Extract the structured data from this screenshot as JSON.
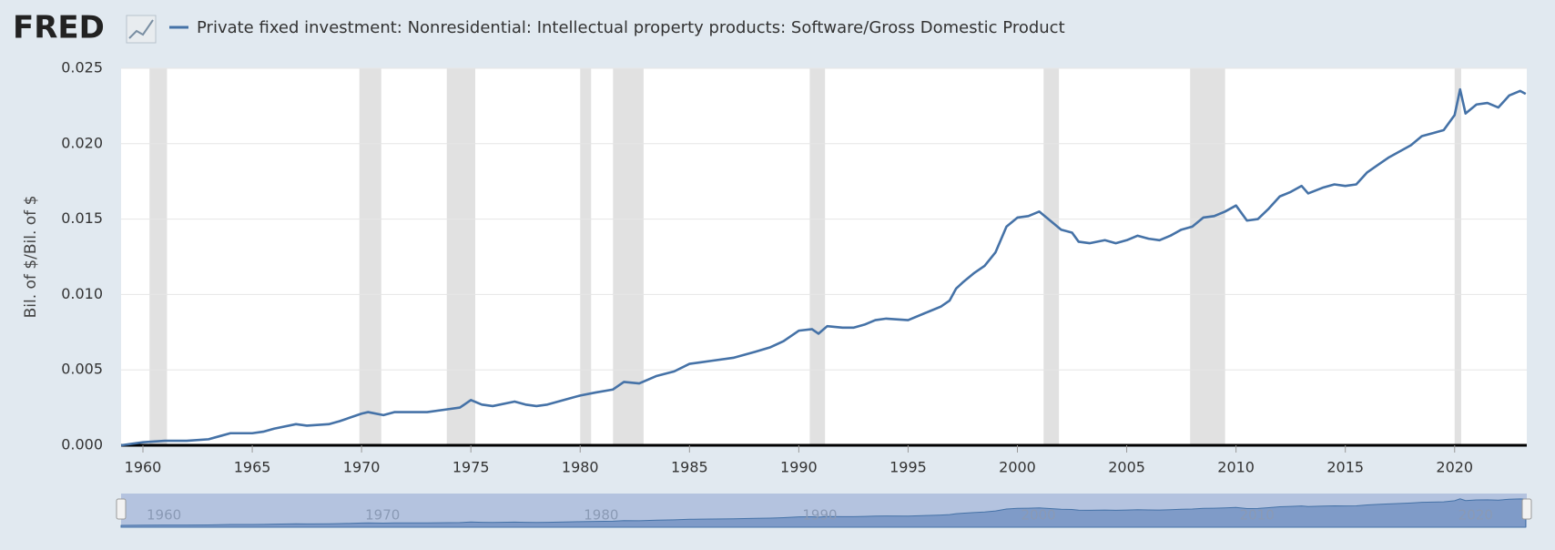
{
  "logo": "FRED",
  "chart_data": {
    "type": "line",
    "y_label": "Bil. of $/Bil. of $",
    "x": [
      1959,
      1960,
      1961,
      1962,
      1963,
      1963.5,
      1964,
      1965,
      1965.5,
      1966,
      1967,
      1967.5,
      1968.5,
      1969,
      1970,
      1970.3,
      1971,
      1971.5,
      1973,
      1974,
      1974.5,
      1975,
      1975.5,
      1976,
      1977,
      1977.5,
      1978,
      1978.5,
      1979.5,
      1980,
      1980.7,
      1981.5,
      1982,
      1982.7,
      1983.5,
      1984.3,
      1985,
      1985.5,
      1986,
      1987,
      1988,
      1988.7,
      1989.3,
      1990,
      1990.6,
      1990.9,
      1991.3,
      1992,
      1992.5,
      1993,
      1993.5,
      1994,
      1995,
      1996,
      1996.5,
      1996.9,
      1997.2,
      1997.5,
      1998,
      1998.5,
      1999,
      1999.5,
      2000,
      2000.5,
      2001,
      2001.5,
      2002,
      2002.5,
      2002.8,
      2003.3,
      2004,
      2004.5,
      2005,
      2005.5,
      2006,
      2006.5,
      2007,
      2007.5,
      2008,
      2008.5,
      2009,
      2009.5,
      2010,
      2010.5,
      2011,
      2011.5,
      2012,
      2012.5,
      2013,
      2013.3,
      2014,
      2014.5,
      2015,
      2015.5,
      2016,
      2016.5,
      2017,
      2018,
      2018.5,
      2019,
      2019.5,
      2020,
      2020.25,
      2020.5,
      2021,
      2021.5,
      2022,
      2022.5,
      2023,
      2023.25
    ],
    "series": [
      {
        "name": "Private fixed investment: Nonresidential: Intellectual property products: Software/Gross Domestic Product",
        "color": "#4572a7",
        "values": [
          0.0,
          0.0002,
          0.0003,
          0.0003,
          0.0004,
          0.0006,
          0.0008,
          0.0008,
          0.0009,
          0.0011,
          0.0014,
          0.0013,
          0.0014,
          0.0016,
          0.0021,
          0.0022,
          0.002,
          0.0022,
          0.0022,
          0.0024,
          0.0025,
          0.003,
          0.0027,
          0.0026,
          0.0029,
          0.0027,
          0.0026,
          0.0027,
          0.0031,
          0.0033,
          0.0035,
          0.0037,
          0.0042,
          0.0041,
          0.0046,
          0.0049,
          0.0054,
          0.0055,
          0.0056,
          0.0058,
          0.0062,
          0.0065,
          0.0069,
          0.0076,
          0.0077,
          0.0074,
          0.0079,
          0.0078,
          0.0078,
          0.008,
          0.0083,
          0.0084,
          0.0083,
          0.0089,
          0.0092,
          0.0096,
          0.0104,
          0.0108,
          0.0114,
          0.0119,
          0.0128,
          0.0145,
          0.0151,
          0.0152,
          0.0155,
          0.0149,
          0.0143,
          0.0141,
          0.0135,
          0.0134,
          0.0136,
          0.0134,
          0.0136,
          0.0139,
          0.0137,
          0.0136,
          0.0139,
          0.0143,
          0.0145,
          0.0151,
          0.0152,
          0.0155,
          0.0159,
          0.0149,
          0.015,
          0.0157,
          0.0165,
          0.0168,
          0.0172,
          0.0167,
          0.0171,
          0.0173,
          0.0172,
          0.0173,
          0.0181,
          0.0186,
          0.0191,
          0.0199,
          0.0205,
          0.0207,
          0.0209,
          0.0219,
          0.0236,
          0.022,
          0.0226,
          0.0227,
          0.0224,
          0.0232,
          0.0235,
          0.0233
        ]
      }
    ],
    "xlim": [
      1959,
      2023.3
    ],
    "xticks": [
      1960,
      1965,
      1970,
      1975,
      1980,
      1985,
      1990,
      1995,
      2000,
      2005,
      2010,
      2015,
      2020
    ],
    "navigator_ticks": [
      1960,
      1970,
      1980,
      1990,
      2000,
      2010,
      2020
    ],
    "ylim": [
      0,
      0.025
    ],
    "yticks": [
      {
        "value": 0,
        "label": "0.000"
      },
      {
        "value": 0.005,
        "label": "0.005"
      },
      {
        "value": 0.01,
        "label": "0.010"
      },
      {
        "value": 0.015,
        "label": "0.015"
      },
      {
        "value": 0.02,
        "label": "0.020"
      },
      {
        "value": 0.025,
        "label": "0.025"
      }
    ],
    "recessions": [
      [
        1960.3,
        1961.1
      ],
      [
        1969.9,
        1970.9
      ],
      [
        1973.9,
        1975.2
      ],
      [
        1980.0,
        1980.5
      ],
      [
        1981.5,
        1982.9
      ],
      [
        1990.5,
        1991.2
      ],
      [
        2001.2,
        2001.9
      ],
      [
        2007.9,
        2009.5
      ],
      [
        2020.0,
        2020.3
      ]
    ],
    "recession_color": "#e1e1e1",
    "grid": true
  }
}
